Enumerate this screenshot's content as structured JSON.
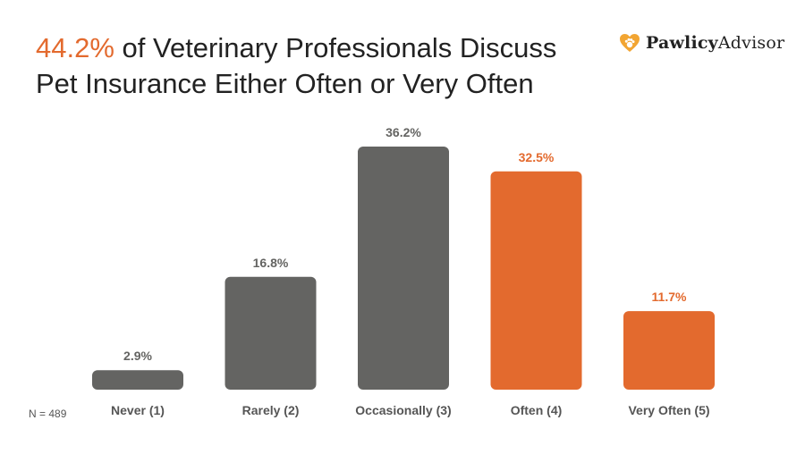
{
  "title": {
    "highlight": "44.2%",
    "rest": " of Veterinary Professionals Discuss Pet Insurance Either Often or Very Often"
  },
  "logo": {
    "text_bold": "Pawlicy",
    "text_regular": "Advisor",
    "icon": "heart-paw-icon"
  },
  "note": "N = 489",
  "colors": {
    "gray": "#646462",
    "orange": "#e36a2e",
    "title": "#222222"
  },
  "chart_data": {
    "type": "bar",
    "categories": [
      "Never (1)",
      "Rarely (2)",
      "Occasionally (3)",
      "Often (4)",
      "Very Often (5)"
    ],
    "values": [
      2.9,
      16.8,
      36.2,
      32.5,
      11.7
    ],
    "value_labels": [
      "2.9%",
      "16.8%",
      "36.2%",
      "32.5%",
      "11.7%"
    ],
    "highlighted": [
      false,
      false,
      false,
      true,
      true
    ],
    "grid": false,
    "legend": "none"
  }
}
